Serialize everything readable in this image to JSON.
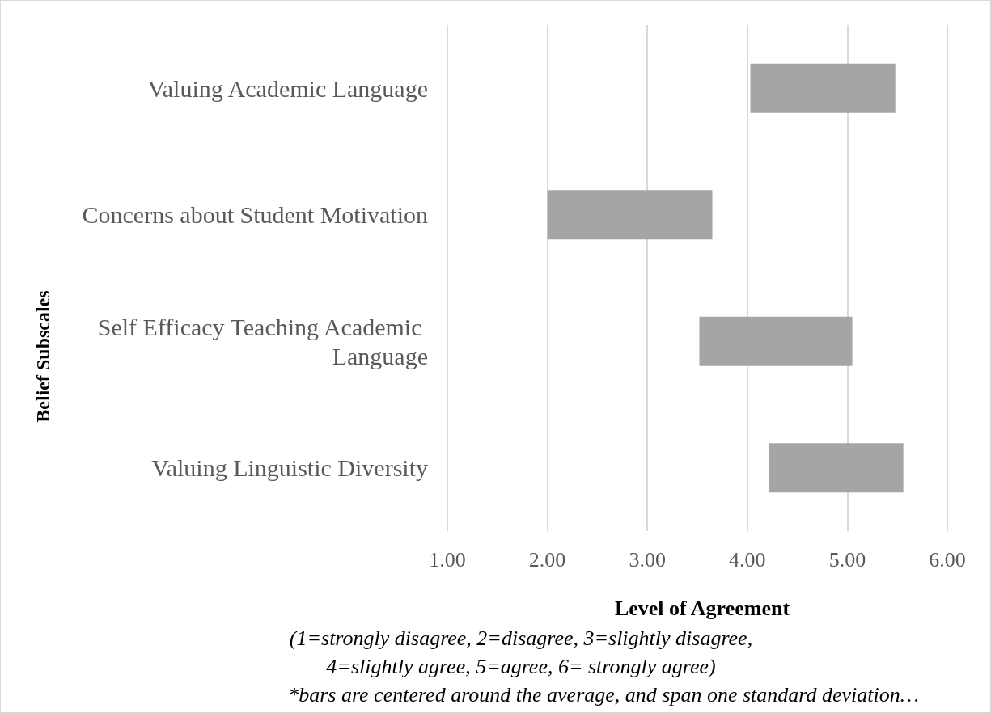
{
  "chart_data": {
    "type": "bar",
    "orientation": "horizontal",
    "ylabel": "Belief Subscales",
    "xlabel": "Level of Agreement",
    "annotations": [
      "(1=strongly disagree, 2=disagree, 3=slightly disagree,",
      "4=slightly agree, 5=agree, 6= strongly agree)",
      "*bars are centered around the average, and span one standard deviation…"
    ],
    "categories": [
      "Valuing Academic Language",
      "Concerns about Student Motivation",
      "Self Efficacy Teaching Academic Language",
      "Valuing Linguistic Diversity"
    ],
    "base": [
      4.03,
      2.0,
      3.52,
      4.22
    ],
    "values": [
      1.45,
      1.65,
      1.53,
      1.34
    ],
    "color": "#a5a5a5",
    "xlim": [
      1,
      6
    ],
    "xticks": [
      {
        "value": 1,
        "label": "1.00"
      },
      {
        "value": 2,
        "label": "2.00"
      },
      {
        "value": 3,
        "label": "3.00"
      },
      {
        "value": 4,
        "label": "4.00"
      },
      {
        "value": 5,
        "label": "5.00"
      },
      {
        "value": 6,
        "label": "6.00"
      }
    ],
    "grid": "x"
  }
}
